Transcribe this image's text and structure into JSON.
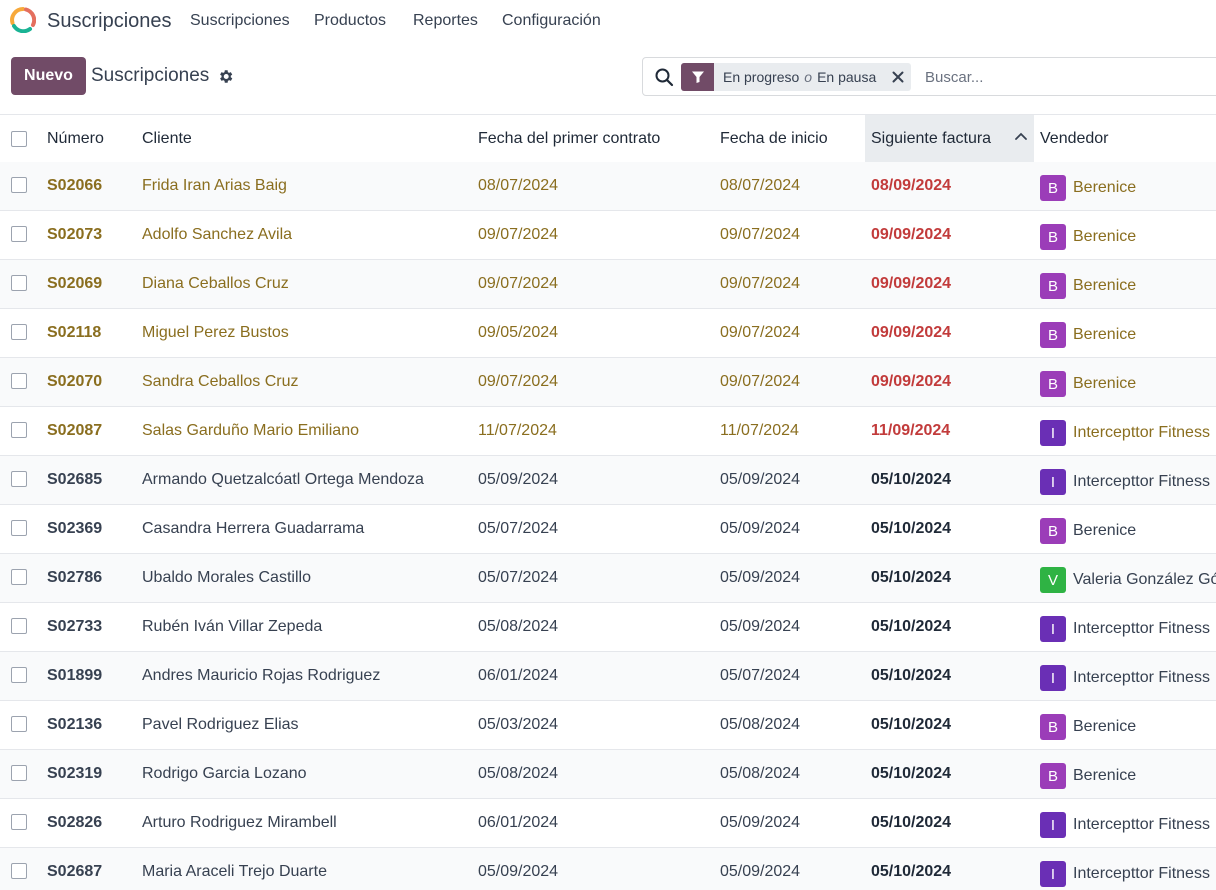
{
  "app": {
    "name": "Suscripciones",
    "logo_colors": [
      "#F7A93B",
      "#1AB394",
      "#E46F5E"
    ],
    "menu": [
      {
        "label": "Suscripciones"
      },
      {
        "label": "Productos"
      },
      {
        "label": "Reportes"
      },
      {
        "label": "Configuración"
      }
    ]
  },
  "control": {
    "new_label": "Nuevo",
    "title": "Suscripciones"
  },
  "search": {
    "facet_first": "En progreso",
    "facet_or": "o",
    "facet_second": "En pausa",
    "placeholder": "Buscar..."
  },
  "colors": {
    "brand": "#714B67",
    "overdue_text": "#8A6E1F",
    "due_red": "#C23B3B",
    "normal_text": "#374151"
  },
  "table": {
    "columns": [
      {
        "label": "Número"
      },
      {
        "label": "Cliente"
      },
      {
        "label": "Fecha del primer contrato"
      },
      {
        "label": "Fecha de inicio"
      },
      {
        "label": "Siguiente factura",
        "sorted": "asc"
      },
      {
        "label": "Vendedor"
      }
    ],
    "rows": [
      {
        "numero": "S02066",
        "cliente": "Frida Iran Arias Baig",
        "primer": "08/07/2024",
        "inicio": "08/07/2024",
        "siguiente": "08/09/2024",
        "vendedor": "Berenice",
        "initial": "B",
        "avatar_color": "#9B3DB8",
        "overdue": true
      },
      {
        "numero": "S02073",
        "cliente": "Adolfo Sanchez Avila",
        "primer": "09/07/2024",
        "inicio": "09/07/2024",
        "siguiente": "09/09/2024",
        "vendedor": "Berenice",
        "initial": "B",
        "avatar_color": "#9B3DB8",
        "overdue": true
      },
      {
        "numero": "S02069",
        "cliente": "Diana Ceballos Cruz",
        "primer": "09/07/2024",
        "inicio": "09/07/2024",
        "siguiente": "09/09/2024",
        "vendedor": "Berenice",
        "initial": "B",
        "avatar_color": "#9B3DB8",
        "overdue": true
      },
      {
        "numero": "S02118",
        "cliente": "Miguel Perez Bustos",
        "primer": "09/05/2024",
        "inicio": "09/07/2024",
        "siguiente": "09/09/2024",
        "vendedor": "Berenice",
        "initial": "B",
        "avatar_color": "#9B3DB8",
        "overdue": true
      },
      {
        "numero": "S02070",
        "cliente": "Sandra Ceballos Cruz",
        "primer": "09/07/2024",
        "inicio": "09/07/2024",
        "siguiente": "09/09/2024",
        "vendedor": "Berenice",
        "initial": "B",
        "avatar_color": "#9B3DB8",
        "overdue": true
      },
      {
        "numero": "S02087",
        "cliente": "Salas Garduño Mario Emiliano",
        "primer": "11/07/2024",
        "inicio": "11/07/2024",
        "siguiente": "11/09/2024",
        "vendedor": "Intercepttor Fitness",
        "initial": "I",
        "avatar_color": "#6A2FB5",
        "overdue": true
      },
      {
        "numero": "S02685",
        "cliente": "Armando Quetzalcóatl Ortega Mendoza",
        "primer": "05/09/2024",
        "inicio": "05/09/2024",
        "siguiente": "05/10/2024",
        "vendedor": "Intercepttor Fitness",
        "initial": "I",
        "avatar_color": "#6A2FB5",
        "overdue": false
      },
      {
        "numero": "S02369",
        "cliente": "Casandra Herrera Guadarrama",
        "primer": "05/07/2024",
        "inicio": "05/09/2024",
        "siguiente": "05/10/2024",
        "vendedor": "Berenice",
        "initial": "B",
        "avatar_color": "#9B3DB8",
        "overdue": false
      },
      {
        "numero": "S02786",
        "cliente": "Ubaldo Morales Castillo",
        "primer": "05/07/2024",
        "inicio": "05/09/2024",
        "siguiente": "05/10/2024",
        "vendedor": "Valeria González Gó",
        "initial": "V",
        "avatar_color": "#2FB344",
        "overdue": false
      },
      {
        "numero": "S02733",
        "cliente": "Rubén Iván Villar Zepeda",
        "primer": "05/08/2024",
        "inicio": "05/09/2024",
        "siguiente": "05/10/2024",
        "vendedor": "Intercepttor Fitness",
        "initial": "I",
        "avatar_color": "#6A2FB5",
        "overdue": false
      },
      {
        "numero": "S01899",
        "cliente": "Andres Mauricio Rojas Rodriguez",
        "primer": "06/01/2024",
        "inicio": "05/07/2024",
        "siguiente": "05/10/2024",
        "vendedor": "Intercepttor Fitness",
        "initial": "I",
        "avatar_color": "#6A2FB5",
        "overdue": false
      },
      {
        "numero": "S02136",
        "cliente": "Pavel Rodriguez Elias",
        "primer": "05/03/2024",
        "inicio": "05/08/2024",
        "siguiente": "05/10/2024",
        "vendedor": "Berenice",
        "initial": "B",
        "avatar_color": "#9B3DB8",
        "overdue": false
      },
      {
        "numero": "S02319",
        "cliente": "Rodrigo Garcia Lozano",
        "primer": "05/08/2024",
        "inicio": "05/08/2024",
        "siguiente": "05/10/2024",
        "vendedor": "Berenice",
        "initial": "B",
        "avatar_color": "#9B3DB8",
        "overdue": false
      },
      {
        "numero": "S02826",
        "cliente": "Arturo Rodriguez Mirambell",
        "primer": "06/01/2024",
        "inicio": "05/09/2024",
        "siguiente": "05/10/2024",
        "vendedor": "Intercepttor Fitness",
        "initial": "I",
        "avatar_color": "#6A2FB5",
        "overdue": false
      },
      {
        "numero": "S02687",
        "cliente": "Maria Araceli Trejo Duarte",
        "primer": "05/09/2024",
        "inicio": "05/09/2024",
        "siguiente": "05/10/2024",
        "vendedor": "Intercepttor Fitness",
        "initial": "I",
        "avatar_color": "#6A2FB5",
        "overdue": false
      }
    ]
  }
}
